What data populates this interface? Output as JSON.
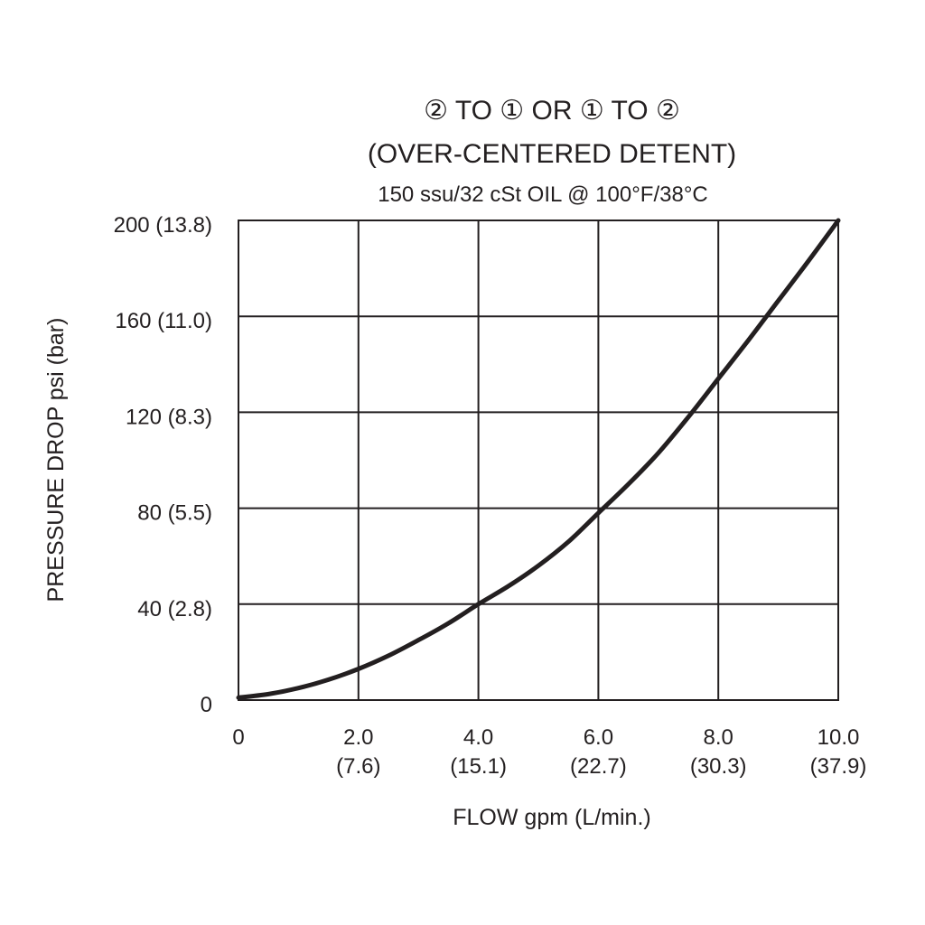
{
  "chart_data": {
    "type": "line",
    "title_lines": [
      "② TO ① OR ① TO ②",
      "(OVER-CENTERED DETENT)"
    ],
    "subtitle": "150 ssu/32 cSt OIL @ 100°F/38°C",
    "xlabel": "FLOW gpm (L/min.)",
    "ylabel": "PRESSURE DROP psi (bar)",
    "xlim": [
      0,
      10
    ],
    "ylim": [
      0,
      200
    ],
    "grid": true,
    "x_ticks": [
      {
        "value": 0,
        "label": "0",
        "sublabel": ""
      },
      {
        "value": 2,
        "label": "2.0",
        "sublabel": "(7.6)"
      },
      {
        "value": 4,
        "label": "4.0",
        "sublabel": "(15.1)"
      },
      {
        "value": 6,
        "label": "6.0",
        "sublabel": "(22.7)"
      },
      {
        "value": 8,
        "label": "8.0",
        "sublabel": "(30.3)"
      },
      {
        "value": 10,
        "label": "10.0",
        "sublabel": "(37.9)"
      }
    ],
    "y_ticks": [
      {
        "value": 0,
        "label": "0"
      },
      {
        "value": 40,
        "label": "40 (2.8)"
      },
      {
        "value": 80,
        "label": "80 (5.5)"
      },
      {
        "value": 120,
        "label": "120 (8.3)"
      },
      {
        "value": 160,
        "label": "160 (11.0)"
      },
      {
        "value": 200,
        "label": "200 (13.8)"
      }
    ],
    "series": [
      {
        "color": "#231f20",
        "points": [
          [
            0,
            1
          ],
          [
            0.5,
            2.5
          ],
          [
            1,
            5
          ],
          [
            1.5,
            8.5
          ],
          [
            2,
            13
          ],
          [
            2.5,
            18.5
          ],
          [
            3,
            25
          ],
          [
            3.5,
            32
          ],
          [
            4,
            40
          ],
          [
            4.5,
            47.5
          ],
          [
            5,
            56
          ],
          [
            5.5,
            66
          ],
          [
            6,
            78
          ],
          [
            6.5,
            90
          ],
          [
            7,
            103
          ],
          [
            7.5,
            118
          ],
          [
            8,
            134
          ],
          [
            8.5,
            150
          ],
          [
            9,
            166.5
          ],
          [
            9.5,
            183
          ],
          [
            10,
            200
          ]
        ]
      }
    ]
  }
}
